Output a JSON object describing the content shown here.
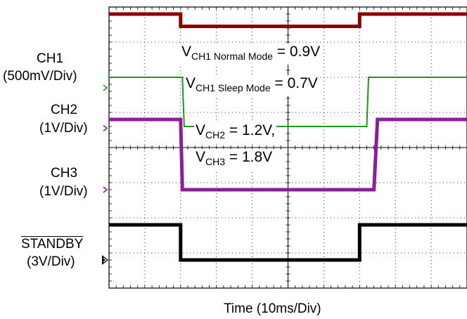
{
  "chart_data": {
    "type": "line",
    "title": "",
    "xlabel": "Time  (10ms/Div)",
    "ylabel": "",
    "x_divisions": 10,
    "y_divisions": 8,
    "grid": true,
    "channels": [
      {
        "id": "ref",
        "name": "",
        "color": "#8b0000",
        "times_div": [
          0,
          2.0,
          2.0,
          7.0,
          7.0,
          10
        ],
        "levels_div": [
          7.8,
          7.8,
          7.45,
          7.45,
          7.8,
          7.8
        ]
      },
      {
        "id": "ch1",
        "name": "CH1",
        "scale": "(500mV/Div)",
        "color": "#1a9a1a",
        "times_div": [
          0,
          2.05,
          2.1,
          7.2,
          7.25,
          10
        ],
        "levels_div": [
          6.0,
          6.0,
          4.6,
          4.6,
          6.0,
          6.0
        ],
        "marker_level_div": 5.7
      },
      {
        "id": "ch2",
        "name": "CH2",
        "scale": "(1V/Div)",
        "color": "#8e1c9e",
        "times_div": [
          0,
          2.0,
          2.05,
          7.4,
          7.5,
          10
        ],
        "levels_div": [
          4.8,
          4.8,
          2.8,
          2.8,
          4.8,
          4.8
        ],
        "marker_level_div": 4.55
      },
      {
        "id": "ch3",
        "name": "CH3",
        "scale": "(1V/Div)",
        "color": "#8e1c9e",
        "marker_level_div": 2.8
      },
      {
        "id": "standby",
        "name": "STANDBY",
        "scale": "(3V/Div)",
        "color": "#000000",
        "times_div": [
          0,
          2.0,
          2.0,
          7.0,
          7.0,
          10
        ],
        "levels_div": [
          1.8,
          1.8,
          0.8,
          0.8,
          1.8,
          1.8
        ],
        "marker_level_div": 0.8
      }
    ],
    "annotations": {
      "a1_v": "V",
      "a1_sub": "CH1 Normal Mode",
      "a1_val": " = 0.9V",
      "a2_v": "V",
      "a2_sub": "CH1 Sleep Mode",
      "a2_val": " = 0.7V",
      "a3_v": "V",
      "a3_sub": "CH2",
      "a3_val": " = 1.2V,",
      "a4_v": "V",
      "a4_sub": "CH3",
      "a4_val": " = 1.8V"
    }
  }
}
